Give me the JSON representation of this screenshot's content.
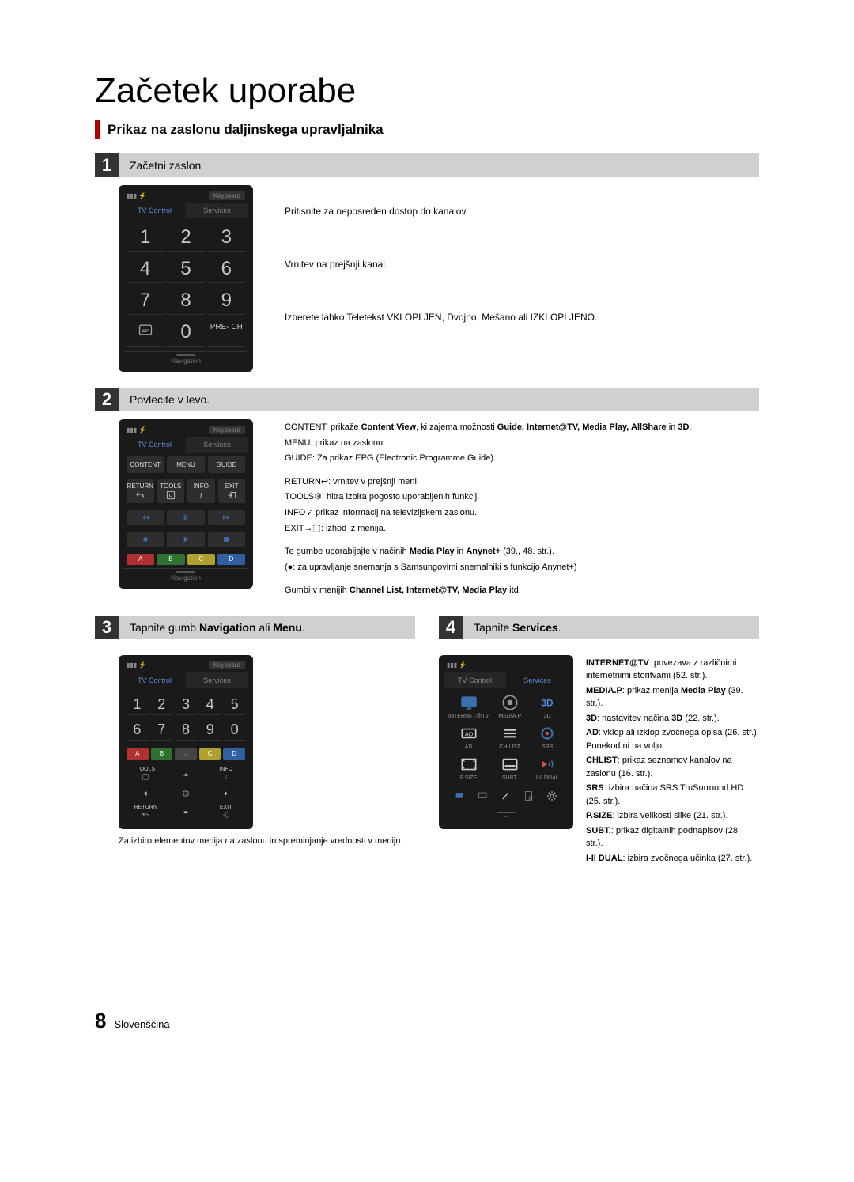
{
  "title": "Začetek uporabe",
  "subtitle": "Prikaz na zaslonu daljinskega upravljalnika",
  "footer": {
    "page": "8",
    "lang": "Slovenščina"
  },
  "colors": {
    "accent_red": "#b80000",
    "bar_gray": "#d0d0d0",
    "screen_bg": "#1a1a1a",
    "btn_bg": "#2e2e2e",
    "tab_active": "#5a8fd6",
    "cbtn_a": "#b03030",
    "cbtn_b": "#307030",
    "cbtn_c": "#b0a030",
    "cbtn_d": "#3060a0"
  },
  "step1": {
    "num": "1",
    "label": "Začetni zaslon",
    "remote": {
      "keyboard": "Keyboard",
      "tab_left": "TV Control",
      "tab_right": "Services",
      "numpad": [
        "1",
        "2",
        "3",
        "4",
        "5",
        "6",
        "7",
        "8",
        "9",
        "",
        "0",
        "PRE-\nCH"
      ],
      "nav": "Navigation"
    },
    "desc": [
      "Pritisnite za neposreden dostop do kanalov.",
      "Vrnitev na prejšnji kanal.",
      "Izberete lahko Teletekst VKLOPLJEN, Dvojno, Mešano ali IZKLOPLJENO."
    ]
  },
  "step2": {
    "num": "2",
    "label": "Povlecite v levo.",
    "remote": {
      "keyboard": "Keyboard",
      "tab_left": "TV Control",
      "tab_right": "Services",
      "btns3": [
        "CONTENT",
        "MENU",
        "GUIDE"
      ],
      "row4_top": [
        "RETURN",
        "TOOLS",
        "INFO",
        "EXIT"
      ],
      "color": [
        "A",
        "B",
        "C",
        "D"
      ],
      "nav": "Navigation"
    },
    "desc_html": "CONTENT: prikaže <b>Content View</b>, ki zajema možnosti <b>Guide, Internet@TV, Media Play, AllShare</b> in <b>3D</b>.\nMENU: prikaz na zaslonu.\nGUIDE: Za prikaz EPG (Electronic Programme Guide).\n\nRETURN↩: vrnitev v prejšnji meni.\nTOOLS⚙: hitra izbira pogosto uporabljenih funkcij.\nINFO 𝒾: prikaz informacij na televizijskem zaslonu.\nEXIT→⬚: izhod iz menija.\n\nTe gumbe uporabljajte v načinih <b>Media Play</b> in <b>Anynet+</b> (39., 48. str.).\n(●: za upravljanje snemanja s Samsungovimi snemalniki s funkcijo Anynet+)\n\nGumbi v menijih <b>Channel List, Internet@TV, Media Play</b> itd."
  },
  "step3": {
    "num": "3",
    "label_html": "Tapnite gumb <b>Navigation</b> ali <b>Menu</b>.",
    "remote": {
      "keyboard": "Keyboard",
      "tab_left": "TV Control",
      "tab_right": "Services",
      "numpad": [
        "1",
        "2",
        "3",
        "4",
        "5",
        "6",
        "7",
        "8",
        "9",
        "0"
      ],
      "color": [
        "A",
        "B",
        "",
        "C",
        "D"
      ],
      "dpad_corners": [
        "TOOLS",
        "INFO",
        "RETURN",
        "EXIT"
      ]
    },
    "note": "Za izbiro elementov menija na zaslonu in spreminjanje vrednosti v meniju."
  },
  "step4": {
    "num": "4",
    "label_html": "Tapnite <b>Services</b>.",
    "remote": {
      "tab_left": "TV Control",
      "tab_right": "Services",
      "grid": [
        {
          "label": "INTERNET@TV"
        },
        {
          "label": "MEDIA.P"
        },
        {
          "label": "3D"
        },
        {
          "label": "AD"
        },
        {
          "label": "CH LIST"
        },
        {
          "label": "SRS"
        },
        {
          "label": "P.SIZE"
        },
        {
          "label": "SUBT."
        },
        {
          "label": "I-II DUAL"
        }
      ]
    },
    "desc_html": "<b>INTERNET@TV</b>: povezava z različnimi internetnimi storitvami (52. str.).\n<b>MEDIA.P</b>: prikaz menija <b>Media Play</b> (39. str.).\n<b>3D</b>: nastavitev načina <b>3D</b> (22. str.).\n<b>AD</b>: vklop ali izklop zvočnega opisa (26. str.). Ponekod ni na voljo.\n<b>CHLIST</b>: prikaz seznamov kanalov na zaslonu (16. str.).\n<b>SRS</b>: izbira načina SRS TruSurround HD (25. str.).\n<b>P.SIZE</b>: izbira velikosti slike (21. str.).\n<b>SUBT.</b>: prikaz digitalnih podnapisov (28. str.).\n<b>I-II DUAL</b>: izbira zvočnega učinka (27. str.)."
  }
}
